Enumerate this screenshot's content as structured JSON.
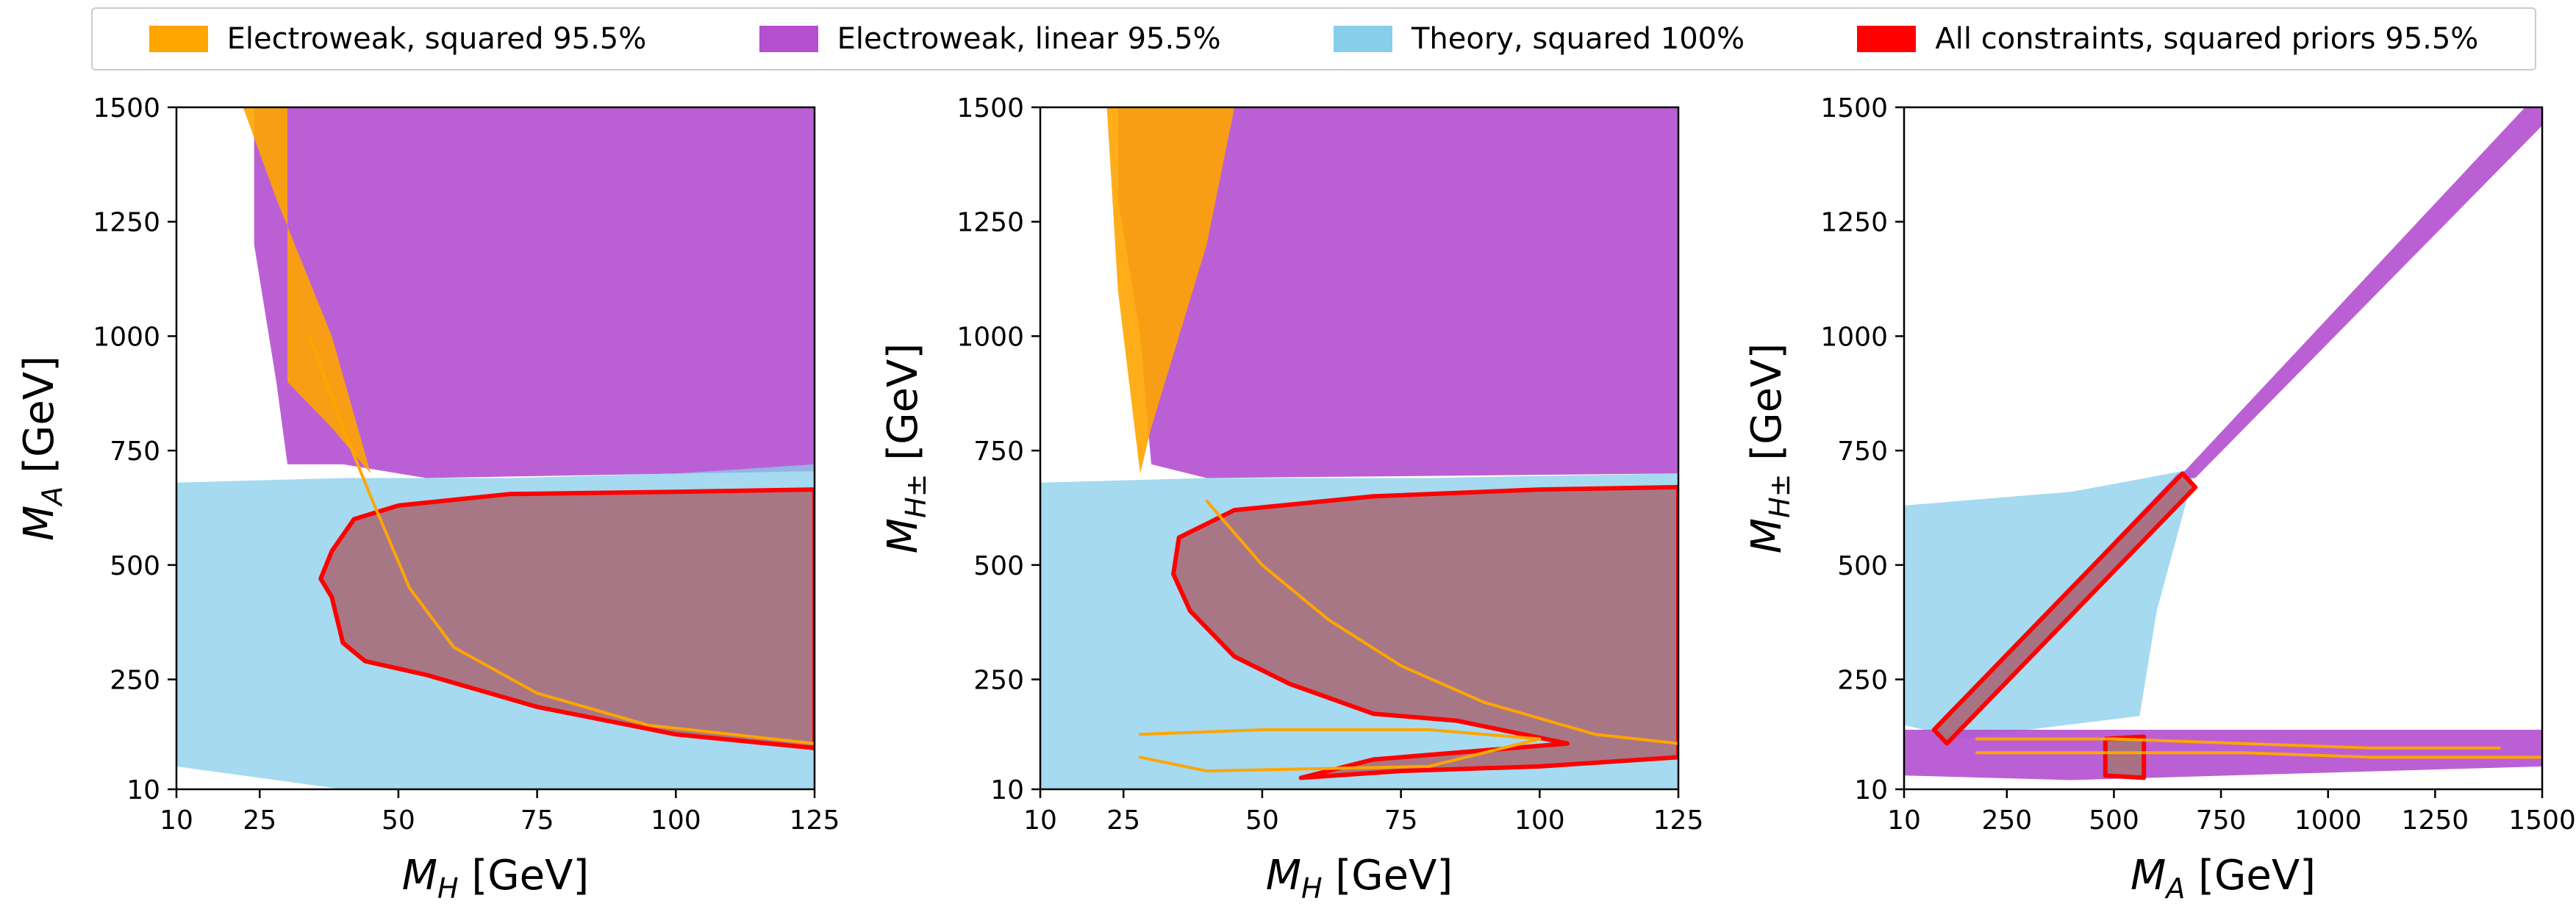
{
  "legend": [
    {
      "label": "Electroweak, squared 95.5%",
      "color": "#ffa500"
    },
    {
      "label": "Electroweak, linear 95.5%",
      "color": "#b44fcf"
    },
    {
      "label": "Theory, squared 100%",
      "color": "#87ceeb"
    },
    {
      "label": "All constraints, squared priors 95.5%",
      "color": "#ff0000"
    }
  ],
  "colors": {
    "ew_squared": "#ffa500",
    "ew_linear": "#b44fcf",
    "theory": "#87ceeb",
    "all_constraints": "#ff0000",
    "overlap_fill": "#a8727f"
  },
  "chart_data": [
    {
      "type": "area",
      "xlabel_main": "M",
      "xlabel_sub": "H",
      "xlabel_unit": " [GeV]",
      "ylabel_main": "M",
      "ylabel_sub": "A",
      "ylabel_unit": " [GeV]",
      "xlim": [
        10,
        125
      ],
      "ylim": [
        10,
        1500
      ],
      "xticks": [
        10,
        25,
        50,
        75,
        100,
        125
      ],
      "yticks": [
        10,
        250,
        500,
        750,
        1000,
        1250,
        1500
      ],
      "regions": [
        {
          "series": "ew_linear",
          "points": [
            [
              24,
              1500
            ],
            [
              125,
              1500
            ],
            [
              125,
              705
            ],
            [
              55,
              690
            ],
            [
              40,
              720
            ],
            [
              30,
              720
            ],
            [
              28,
              900
            ],
            [
              24,
              1200
            ]
          ]
        },
        {
          "series": "ew_squared",
          "points": [
            [
              22,
              1500
            ],
            [
              30,
              1500
            ],
            [
              30,
              900
            ],
            [
              38,
              800
            ],
            [
              45,
              700
            ],
            [
              38,
              1000
            ],
            [
              28,
              1300
            ]
          ]
        },
        {
          "series": "theory",
          "points": [
            [
              10,
              680
            ],
            [
              40,
              690
            ],
            [
              70,
              690
            ],
            [
              100,
              700
            ],
            [
              125,
              720
            ],
            [
              125,
              10
            ],
            [
              40,
              10
            ],
            [
              10,
              60
            ]
          ]
        },
        {
          "series": "all_constraints",
          "points": [
            [
              125,
              665
            ],
            [
              100,
              660
            ],
            [
              70,
              655
            ],
            [
              50,
              630
            ],
            [
              42,
              600
            ],
            [
              38,
              530
            ],
            [
              36,
              470
            ],
            [
              38,
              430
            ],
            [
              40,
              330
            ],
            [
              44,
              290
            ],
            [
              55,
              260
            ],
            [
              75,
              190
            ],
            [
              100,
              130
            ],
            [
              125,
              100
            ]
          ]
        }
      ],
      "contours": [
        {
          "series": "ew_squared",
          "points": [
            [
              34,
              1000
            ],
            [
              40,
              800
            ],
            [
              45,
              650
            ],
            [
              52,
              450
            ],
            [
              60,
              320
            ],
            [
              75,
              220
            ],
            [
              95,
              150
            ],
            [
              125,
              110
            ]
          ]
        }
      ]
    },
    {
      "type": "area",
      "xlabel_main": "M",
      "xlabel_sub": "H",
      "xlabel_unit": " [GeV]",
      "ylabel_main": "M",
      "ylabel_sub": "H±",
      "ylabel_unit": " [GeV]",
      "xlim": [
        10,
        125
      ],
      "ylim": [
        10,
        1500
      ],
      "xticks": [
        10,
        25,
        50,
        75,
        100,
        125
      ],
      "yticks": [
        10,
        250,
        500,
        750,
        1000,
        1250,
        1500
      ],
      "regions": [
        {
          "series": "ew_linear",
          "points": [
            [
              24,
              1500
            ],
            [
              125,
              1500
            ],
            [
              125,
              700
            ],
            [
              40,
              690
            ],
            [
              30,
              720
            ],
            [
              28,
              1000
            ],
            [
              24,
              1300
            ]
          ]
        },
        {
          "series": "ew_squared",
          "points": [
            [
              22,
              1500
            ],
            [
              45,
              1500
            ],
            [
              40,
              1200
            ],
            [
              30,
              800
            ],
            [
              28,
              700
            ],
            [
              24,
              1100
            ]
          ]
        },
        {
          "series": "theory",
          "points": [
            [
              10,
              680
            ],
            [
              40,
              690
            ],
            [
              80,
              690
            ],
            [
              125,
              700
            ],
            [
              125,
              10
            ],
            [
              10,
              10
            ]
          ]
        },
        {
          "series": "all_constraints",
          "points": [
            [
              125,
              670
            ],
            [
              100,
              665
            ],
            [
              70,
              650
            ],
            [
              45,
              620
            ],
            [
              35,
              560
            ],
            [
              34,
              480
            ],
            [
              37,
              400
            ],
            [
              45,
              300
            ],
            [
              55,
              240
            ],
            [
              70,
              175
            ],
            [
              85,
              160
            ],
            [
              105,
              110
            ],
            [
              70,
              75
            ],
            [
              57,
              35
            ],
            [
              75,
              50
            ],
            [
              100,
              60
            ],
            [
              125,
              80
            ]
          ]
        }
      ],
      "contours": [
        {
          "series": "ew_squared",
          "points": [
            [
              40,
              640
            ],
            [
              50,
              500
            ],
            [
              62,
              380
            ],
            [
              75,
              280
            ],
            [
              90,
              200
            ],
            [
              110,
              130
            ],
            [
              125,
              110
            ]
          ]
        },
        {
          "series": "ew_squared",
          "points": [
            [
              28,
              130
            ],
            [
              50,
              140
            ],
            [
              80,
              140
            ],
            [
              100,
              120
            ],
            [
              80,
              60
            ],
            [
              40,
              50
            ],
            [
              28,
              80
            ]
          ]
        }
      ]
    },
    {
      "type": "area",
      "xlabel_main": "M",
      "xlabel_sub": "A",
      "xlabel_unit": " [GeV]",
      "ylabel_main": "M",
      "ylabel_sub": "H±",
      "ylabel_unit": " [GeV]",
      "xlim": [
        10,
        1500
      ],
      "ylim": [
        10,
        1500
      ],
      "xticks": [
        10,
        250,
        500,
        750,
        1000,
        1250,
        1500
      ],
      "yticks": [
        10,
        250,
        500,
        750,
        1000,
        1250,
        1500
      ],
      "regions": [
        {
          "series": "theory",
          "points": [
            [
              10,
              630
            ],
            [
              400,
              660
            ],
            [
              690,
              710
            ],
            [
              600,
              400
            ],
            [
              560,
              170
            ],
            [
              300,
              140
            ],
            [
              150,
              120
            ],
            [
              10,
              150
            ]
          ]
        },
        {
          "series": "ew_linear",
          "points": [
            [
              1500,
              1500
            ],
            [
              1500,
              1460
            ],
            [
              690,
              690
            ],
            [
              650,
              690
            ],
            [
              1460,
              1500
            ]
          ]
        },
        {
          "series": "ew_linear",
          "points": [
            [
              10,
              140
            ],
            [
              1500,
              140
            ],
            [
              1500,
              60
            ],
            [
              400,
              30
            ],
            [
              10,
              40
            ]
          ]
        },
        {
          "series": "ew_linear",
          "points": [
            [
              80,
              140
            ],
            [
              650,
              700
            ],
            [
              680,
              660
            ],
            [
              110,
              110
            ]
          ]
        },
        {
          "series": "all_constraints",
          "points": [
            [
              80,
              140
            ],
            [
              660,
              700
            ],
            [
              690,
              670
            ],
            [
              110,
              110
            ]
          ]
        },
        {
          "series": "all_constraints",
          "points": [
            [
              480,
              120
            ],
            [
              570,
              125
            ],
            [
              570,
              35
            ],
            [
              480,
              40
            ]
          ]
        }
      ],
      "contours": [
        {
          "series": "ew_squared",
          "points": [
            [
              180,
              90
            ],
            [
              500,
              90
            ],
            [
              800,
              90
            ],
            [
              1100,
              80
            ],
            [
              1500,
              80
            ]
          ]
        },
        {
          "series": "ew_squared",
          "points": [
            [
              180,
              120
            ],
            [
              500,
              120
            ],
            [
              800,
              110
            ],
            [
              1100,
              100
            ],
            [
              1400,
              100
            ]
          ]
        }
      ]
    }
  ]
}
